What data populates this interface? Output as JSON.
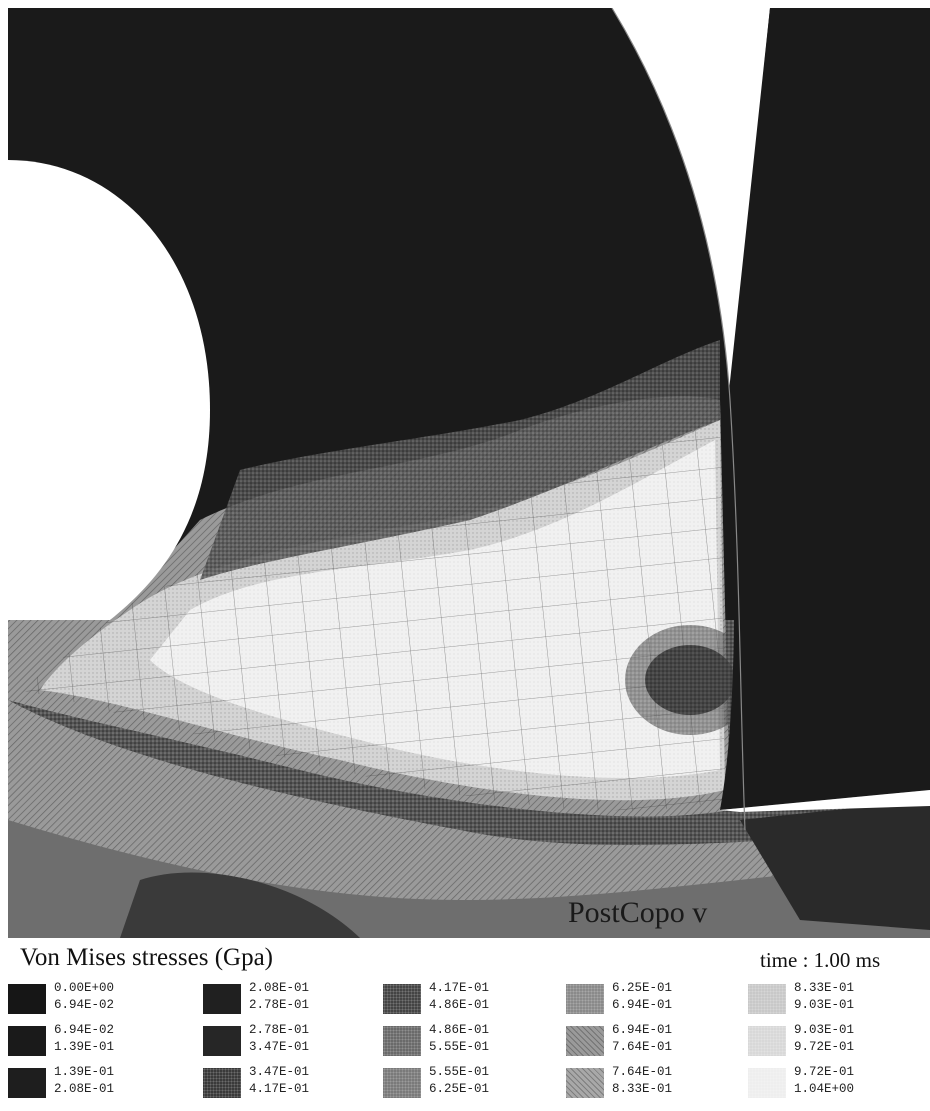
{
  "figure": {
    "watermark": "PostCopo v",
    "legend_title": "Von Mises stresses (Gpa)",
    "time_label": "time : 1.00 ms"
  },
  "legend": [
    {
      "low": "0.00E+00",
      "high": "6.94E-02",
      "color": "#161616",
      "pattern": "solid"
    },
    {
      "low": "6.94E-02",
      "high": "1.39E-01",
      "color": "#1a1a1a",
      "pattern": "solid"
    },
    {
      "low": "1.39E-01",
      "high": "2.08E-01",
      "color": "#1e1e1e",
      "pattern": "solid"
    },
    {
      "low": "2.08E-01",
      "high": "2.78E-01",
      "color": "#202020",
      "pattern": "solid"
    },
    {
      "low": "2.78E-01",
      "high": "3.47E-01",
      "color": "#262626",
      "pattern": "solid"
    },
    {
      "low": "3.47E-01",
      "high": "4.17E-01",
      "color": "#3a3a3a",
      "pattern": "dots"
    },
    {
      "low": "4.17E-01",
      "high": "4.86E-01",
      "color": "#444444",
      "pattern": "dots"
    },
    {
      "low": "4.86E-01",
      "high": "5.55E-01",
      "color": "#6a6a6a",
      "pattern": "dots"
    },
    {
      "low": "5.55E-01",
      "high": "6.25E-01",
      "color": "#7a7a7a",
      "pattern": "dots"
    },
    {
      "low": "6.25E-01",
      "high": "6.94E-01",
      "color": "#8a8a8a",
      "pattern": "dots"
    },
    {
      "low": "6.94E-01",
      "high": "7.64E-01",
      "color": "#9a9a9a",
      "pattern": "hatch"
    },
    {
      "low": "7.64E-01",
      "high": "8.33E-01",
      "color": "#a8a8a8",
      "pattern": "hatch"
    },
    {
      "low": "8.33E-01",
      "high": "9.03E-01",
      "color": "#c8c8c8",
      "pattern": "dots"
    },
    {
      "low": "9.03E-01",
      "high": "9.72E-01",
      "color": "#d8d8d8",
      "pattern": "dots"
    },
    {
      "low": "9.72E-01",
      "high": "1.04E+00",
      "color": "#eeeeee",
      "pattern": "dots"
    }
  ]
}
